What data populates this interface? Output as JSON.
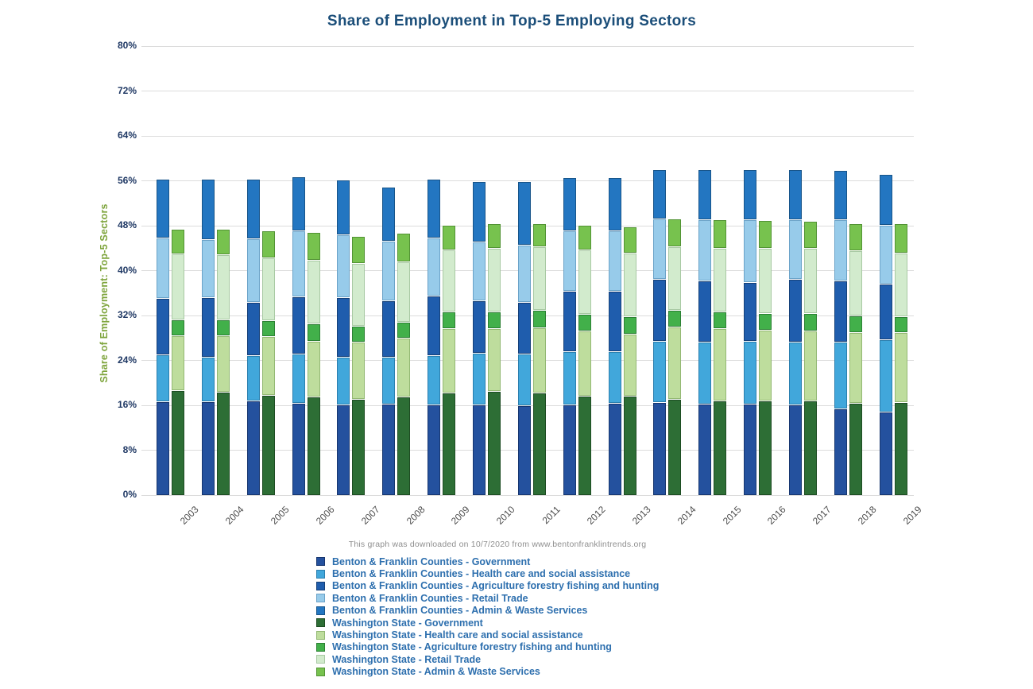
{
  "page": {
    "title": "Share of Employment in Top-5 Employing Sectors",
    "footnote": "This graph was downloaded on 10/7/2020 from www.bentonfranklintrends.org"
  },
  "colors": {
    "title_text": "#1b4e79",
    "y_tick_text": "#1f3864",
    "y_axis_title_text": "#7ea43c",
    "x_tick_text": "#4d4d4d",
    "footnote_text": "#8f8f8f",
    "legend_text": "#2d6fae",
    "gridline": "#dcdcdc",
    "background": "#ffffff"
  },
  "chart_data": {
    "type": "bar",
    "stacked": true,
    "grid": true,
    "legend_position": "bottom",
    "title": "Share of Employment in Top-5 Employing Sectors",
    "xlabel": "",
    "ylabel": "Share of Employment: Top-5 Sectors",
    "ylim": [
      0,
      80
    ],
    "ytick_step": 8,
    "ytick_suffix": "%",
    "categories": [
      "2003",
      "2004",
      "2005",
      "2006",
      "2007",
      "2008",
      "2009",
      "2010",
      "2011",
      "2012",
      "2013",
      "2014",
      "2015",
      "2016",
      "2017",
      "2018",
      "2019"
    ],
    "bar_groups": [
      {
        "id": "bf",
        "name": "Benton & Franklin Counties"
      },
      {
        "id": "wa",
        "name": "Washington State"
      }
    ],
    "series": [
      {
        "name": "Benton & Franklin Counties - Government",
        "group": "bf",
        "color": "#24519e",
        "border": "#17366f",
        "values": [
          16.7,
          16.7,
          16.8,
          16.4,
          16.2,
          16.3,
          16.2,
          16.2,
          16.0,
          16.2,
          16.4,
          16.5,
          16.3,
          16.3,
          16.1,
          15.5,
          14.8
        ]
      },
      {
        "name": "Benton & Franklin Counties - Health care and social assistance",
        "group": "bf",
        "color": "#41a7db",
        "border": "#2b7fae",
        "values": [
          8.4,
          8.0,
          8.1,
          8.8,
          8.4,
          8.3,
          8.7,
          9.2,
          9.2,
          9.4,
          9.3,
          11.0,
          11.0,
          11.2,
          11.2,
          11.8,
          13.0
        ]
      },
      {
        "name": "Benton & Franklin Counties - Agriculture forestry fishing and hunting",
        "group": "bf",
        "color": "#1f5dad",
        "border": "#154078",
        "values": [
          10.0,
          10.5,
          9.5,
          10.2,
          10.6,
          10.1,
          10.7,
          9.3,
          9.2,
          10.8,
          10.7,
          11.0,
          10.9,
          10.4,
          11.2,
          10.9,
          9.8
        ]
      },
      {
        "name": "Benton & Franklin Counties - Retail Trade",
        "group": "bf",
        "color": "#97cbea",
        "border": "#6ba3c8",
        "values": [
          10.8,
          10.4,
          11.3,
          11.8,
          11.2,
          10.6,
          10.3,
          10.5,
          10.2,
          10.8,
          10.8,
          10.8,
          11.0,
          11.2,
          10.7,
          10.9,
          10.5
        ]
      },
      {
        "name": "Benton & Franklin Counties - Admin & Waste Services",
        "group": "bf",
        "color": "#2376c1",
        "border": "#175489",
        "values": [
          10.5,
          10.8,
          10.6,
          9.6,
          9.8,
          9.7,
          10.4,
          10.7,
          11.3,
          9.4,
          9.4,
          8.8,
          8.8,
          9.0,
          8.8,
          8.8,
          9.1
        ]
      },
      {
        "name": "Washington State - Government",
        "group": "wa",
        "color": "#2d6e35",
        "border": "#1d4c22",
        "values": [
          18.7,
          18.4,
          17.9,
          17.5,
          17.1,
          17.5,
          18.3,
          18.6,
          18.2,
          17.7,
          17.7,
          17.1,
          16.9,
          16.9,
          16.8,
          16.4,
          16.6
        ]
      },
      {
        "name": "Washington State - Health care and social assistance",
        "group": "wa",
        "color": "#bedd9d",
        "border": "#93b873",
        "values": [
          9.8,
          10.1,
          10.4,
          10.0,
          10.2,
          10.6,
          11.4,
          11.1,
          11.7,
          11.6,
          11.1,
          12.9,
          12.8,
          12.5,
          12.5,
          12.6,
          12.4
        ]
      },
      {
        "name": "Washington State - Agriculture forestry fishing and hunting",
        "group": "wa",
        "color": "#42b04a",
        "border": "#2c8033",
        "values": [
          2.8,
          2.8,
          2.8,
          3.1,
          2.8,
          2.7,
          3.0,
          3.0,
          3.1,
          3.0,
          3.1,
          3.0,
          3.0,
          3.0,
          3.1,
          3.0,
          2.9
        ]
      },
      {
        "name": "Washington State - Retail Trade",
        "group": "wa",
        "color": "#d2ebcd",
        "border": "#a8c9a3",
        "values": [
          11.8,
          11.6,
          11.3,
          11.3,
          11.2,
          10.9,
          11.1,
          11.4,
          11.3,
          11.4,
          11.3,
          11.3,
          11.4,
          11.7,
          11.6,
          11.6,
          11.3
        ]
      },
      {
        "name": "Washington State - Admin & Waste Services",
        "group": "wa",
        "color": "#77c24e",
        "border": "#529334",
        "values": [
          4.3,
          4.6,
          4.7,
          5.0,
          4.9,
          5.0,
          4.3,
          4.4,
          4.1,
          4.4,
          4.6,
          5.0,
          5.0,
          4.9,
          4.8,
          4.8,
          5.2
        ]
      }
    ]
  }
}
